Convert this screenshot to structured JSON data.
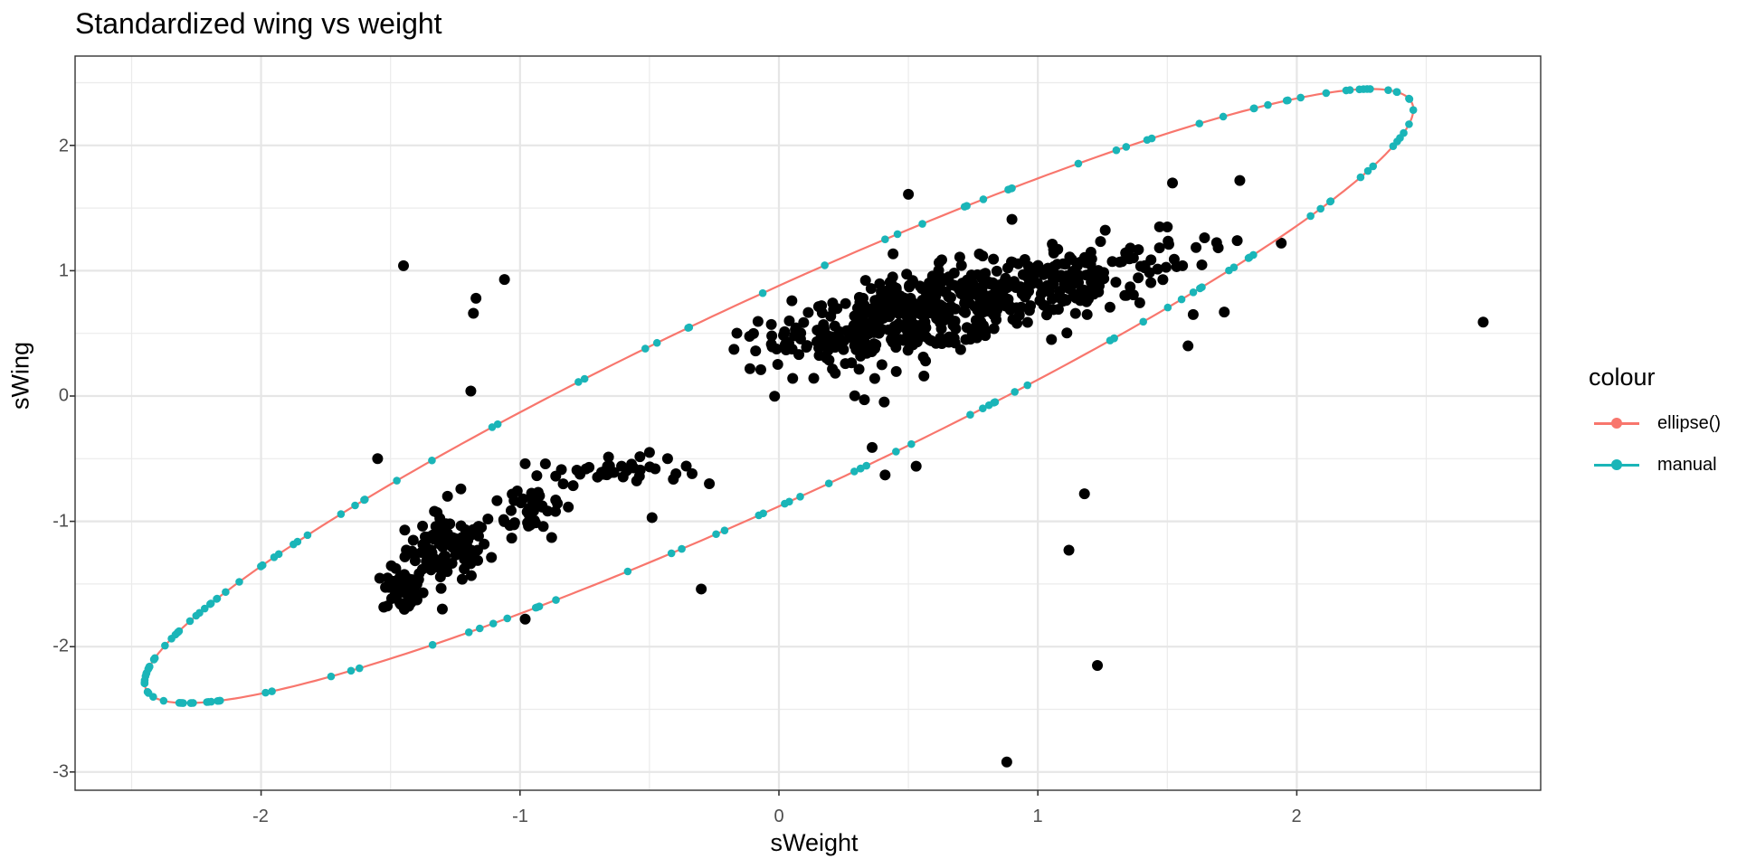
{
  "chart_data": {
    "type": "scatter",
    "title": "Standardized wing vs weight",
    "xlabel": "sWeight",
    "ylabel": "sWing",
    "xlim": [
      -2.7,
      2.95
    ],
    "ylim": [
      -3.18,
      2.7
    ],
    "x_ticks": [
      -2,
      -1,
      0,
      1,
      2
    ],
    "y_ticks": [
      -3,
      -2,
      -1,
      0,
      1,
      2
    ],
    "grid": true,
    "theme": "bw",
    "legend": {
      "title": "colour",
      "position": "right",
      "entries": [
        {
          "label": "ellipse()",
          "color": "#F8766D"
        },
        {
          "label": "manual",
          "color": "#00BFC4"
        }
      ]
    },
    "ellipse": {
      "center": [
        0,
        0
      ],
      "x_extent": [
        -2.45,
        2.45
      ],
      "y_extent": [
        -2.45,
        2.45
      ],
      "y_at_x0": [
        0.88,
        -0.88
      ],
      "line_color": "#F8766D",
      "point_color": "#1AB5B8"
    },
    "scatter_points": [
      [
        -1.45,
        1.04
      ],
      [
        -1.17,
        0.78
      ],
      [
        -1.18,
        0.66
      ],
      [
        -1.06,
        0.93
      ],
      [
        -1.19,
        0.04
      ],
      [
        -1.55,
        -0.5
      ],
      [
        -1.28,
        -0.8
      ],
      [
        -1.32,
        -0.93
      ],
      [
        -1.3,
        -1.7
      ],
      [
        -0.98,
        -1.78
      ],
      [
        -0.3,
        -1.54
      ],
      [
        -0.49,
        -0.97
      ],
      [
        -0.5,
        -0.45
      ],
      [
        -0.43,
        -0.5
      ],
      [
        -0.98,
        -0.54
      ],
      [
        0.5,
        1.61
      ],
      [
        0.9,
        1.41
      ],
      [
        1.52,
        1.7
      ],
      [
        1.78,
        1.72
      ],
      [
        1.77,
        1.24
      ],
      [
        1.94,
        1.22
      ],
      [
        1.47,
        1.35
      ],
      [
        2.72,
        0.59
      ],
      [
        1.58,
        0.4
      ],
      [
        0.33,
        -0.03
      ],
      [
        0.36,
        -0.41
      ],
      [
        0.41,
        -0.63
      ],
      [
        0.53,
        -0.56
      ],
      [
        1.18,
        -0.78
      ],
      [
        1.12,
        -1.23
      ],
      [
        1.23,
        -2.15
      ],
      [
        0.88,
        -2.92
      ],
      [
        0.56,
        0.16
      ],
      [
        0.37,
        0.14
      ],
      [
        -0.09,
        0.36
      ],
      [
        -0.07,
        0.21
      ],
      [
        0.05,
        0.76
      ],
      [
        0.04,
        0.6
      ],
      [
        1.6,
        0.65
      ],
      [
        1.72,
        0.67
      ]
    ],
    "clusters": [
      {
        "center": [
          -1.28,
          -1.22
        ],
        "spread": [
          0.08,
          0.12
        ],
        "n": 90
      },
      {
        "center": [
          -1.45,
          -1.55
        ],
        "spread": [
          0.04,
          0.09
        ],
        "n": 50
      },
      {
        "center": [
          -0.95,
          -0.88
        ],
        "spread": [
          0.08,
          0.12
        ],
        "n": 45
      },
      {
        "center": [
          -0.65,
          -0.6
        ],
        "spread": [
          0.14,
          0.05
        ],
        "n": 35
      },
      {
        "center": [
          0.55,
          0.66
        ],
        "spread": [
          0.25,
          0.16
        ],
        "n": 380
      },
      {
        "center": [
          1.1,
          0.9
        ],
        "spread": [
          0.25,
          0.15
        ],
        "n": 170
      },
      {
        "center": [
          0.12,
          0.48
        ],
        "spread": [
          0.12,
          0.06
        ],
        "n": 40
      }
    ]
  },
  "title": "Standardized wing vs weight",
  "axes": {
    "x_label": "sWeight",
    "y_label": "sWing",
    "x_ticks": [
      "-2",
      "-1",
      "0",
      "1",
      "2"
    ],
    "y_ticks": [
      "2",
      "1",
      "0",
      "-1",
      "-2",
      "-3"
    ]
  },
  "legend": {
    "title": "colour",
    "items": [
      {
        "label": "ellipse()",
        "color": "#F8766D"
      },
      {
        "label": "manual",
        "color": "#1AB5B8"
      }
    ]
  }
}
